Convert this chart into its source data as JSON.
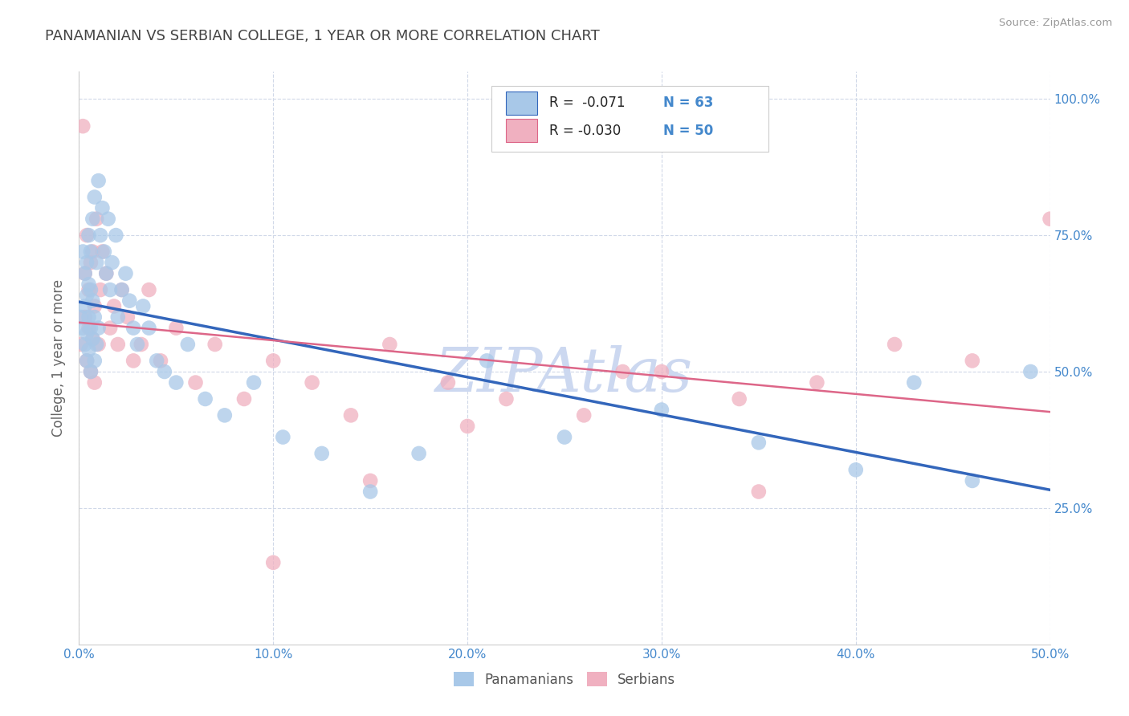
{
  "title": "PANAMANIAN VS SERBIAN COLLEGE, 1 YEAR OR MORE CORRELATION CHART",
  "source": "Source: ZipAtlas.com",
  "ylabel": "College, 1 year or more",
  "xlim": [
    0.0,
    0.5
  ],
  "ylim": [
    0.0,
    1.05
  ],
  "xtick_values": [
    0.0,
    0.1,
    0.2,
    0.3,
    0.4,
    0.5
  ],
  "ytick_values": [
    0.25,
    0.5,
    0.75,
    1.0
  ],
  "watermark": "ZIPAtlas",
  "pan_R": -0.071,
  "pan_N": 63,
  "ser_R": -0.03,
  "ser_N": 50,
  "pan_color": "#a8c8e8",
  "ser_color": "#f0b0c0",
  "pan_line_color": "#3366bb",
  "ser_line_color": "#dd6688",
  "background_color": "#ffffff",
  "grid_color": "#d0d8e8",
  "title_color": "#444444",
  "axis_color": "#4488cc",
  "watermark_color": "#ccd8f0",
  "pan_x": [
    0.001,
    0.002,
    0.002,
    0.003,
    0.003,
    0.003,
    0.004,
    0.004,
    0.004,
    0.004,
    0.005,
    0.005,
    0.005,
    0.005,
    0.006,
    0.006,
    0.006,
    0.006,
    0.007,
    0.007,
    0.007,
    0.008,
    0.008,
    0.008,
    0.009,
    0.009,
    0.01,
    0.01,
    0.011,
    0.012,
    0.013,
    0.014,
    0.015,
    0.016,
    0.017,
    0.019,
    0.02,
    0.022,
    0.024,
    0.026,
    0.028,
    0.03,
    0.033,
    0.036,
    0.04,
    0.044,
    0.05,
    0.056,
    0.065,
    0.075,
    0.09,
    0.105,
    0.125,
    0.15,
    0.175,
    0.21,
    0.25,
    0.3,
    0.35,
    0.4,
    0.43,
    0.46,
    0.49
  ],
  "pan_y": [
    0.6,
    0.58,
    0.72,
    0.55,
    0.62,
    0.68,
    0.52,
    0.57,
    0.64,
    0.7,
    0.54,
    0.6,
    0.66,
    0.75,
    0.5,
    0.58,
    0.65,
    0.72,
    0.56,
    0.63,
    0.78,
    0.52,
    0.6,
    0.82,
    0.55,
    0.7,
    0.58,
    0.85,
    0.75,
    0.8,
    0.72,
    0.68,
    0.78,
    0.65,
    0.7,
    0.75,
    0.6,
    0.65,
    0.68,
    0.63,
    0.58,
    0.55,
    0.62,
    0.58,
    0.52,
    0.5,
    0.48,
    0.55,
    0.45,
    0.42,
    0.48,
    0.38,
    0.35,
    0.28,
    0.35,
    0.52,
    0.38,
    0.43,
    0.37,
    0.32,
    0.48,
    0.3,
    0.5
  ],
  "ser_x": [
    0.001,
    0.002,
    0.003,
    0.003,
    0.004,
    0.004,
    0.005,
    0.005,
    0.006,
    0.006,
    0.007,
    0.007,
    0.008,
    0.008,
    0.009,
    0.01,
    0.011,
    0.012,
    0.014,
    0.016,
    0.018,
    0.02,
    0.022,
    0.025,
    0.028,
    0.032,
    0.036,
    0.042,
    0.05,
    0.06,
    0.07,
    0.085,
    0.1,
    0.12,
    0.14,
    0.16,
    0.19,
    0.22,
    0.26,
    0.3,
    0.34,
    0.38,
    0.42,
    0.46,
    0.5,
    0.35,
    0.28,
    0.2,
    0.15,
    0.1
  ],
  "ser_y": [
    0.55,
    0.95,
    0.6,
    0.68,
    0.52,
    0.75,
    0.58,
    0.65,
    0.5,
    0.7,
    0.56,
    0.72,
    0.48,
    0.62,
    0.78,
    0.55,
    0.65,
    0.72,
    0.68,
    0.58,
    0.62,
    0.55,
    0.65,
    0.6,
    0.52,
    0.55,
    0.65,
    0.52,
    0.58,
    0.48,
    0.55,
    0.45,
    0.52,
    0.48,
    0.42,
    0.55,
    0.48,
    0.45,
    0.42,
    0.5,
    0.45,
    0.48,
    0.55,
    0.52,
    0.78,
    0.28,
    0.5,
    0.4,
    0.3,
    0.15
  ]
}
